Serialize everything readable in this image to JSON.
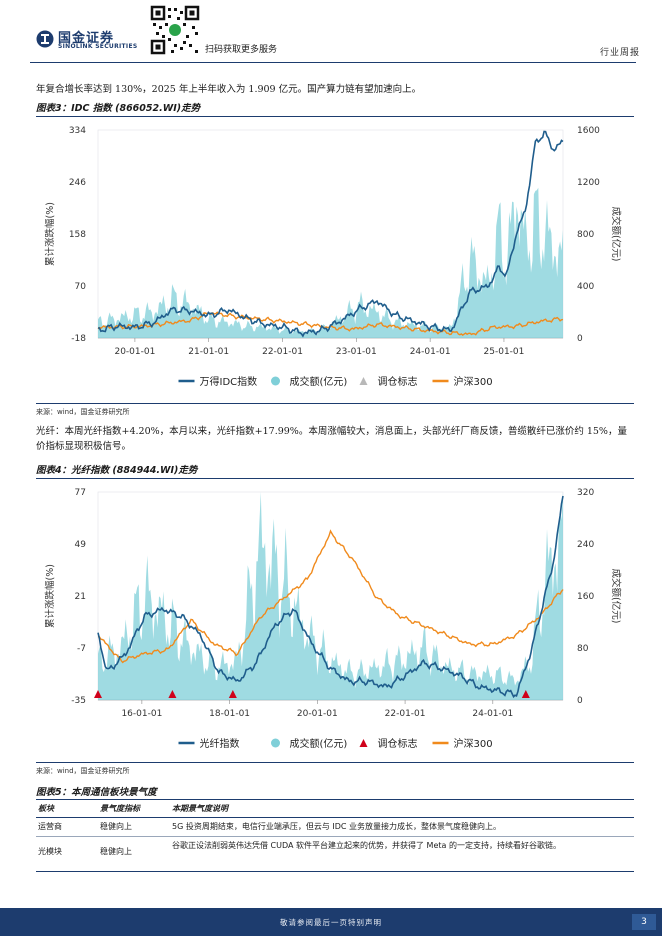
{
  "header": {
    "logo_cn": "国金证券",
    "logo_en": "SINOLINK SECURITIES",
    "qr_caption": "扫码获取更多服务",
    "report_type": "行业周报"
  },
  "intro_text": "年复合增长率达到 130%，2025 年上半年收入为 1.909 亿元。国产算力链有望加速向上。",
  "figure3": {
    "title": "图表3：IDC 指数 (866052.WI)走势",
    "source": "来源：wind，国金证券研究所",
    "chart_data": {
      "type": "line",
      "title": "IDC 指数 (866052.WI)走势",
      "ylabel": "累计涨跌幅(%)",
      "y2label": "成交额(亿元)",
      "ylim": [
        -18,
        334
      ],
      "y2lim": [
        0,
        1600
      ],
      "yticks": [
        "334",
        "246",
        "158",
        "70",
        "-18"
      ],
      "y2ticks": [
        "1600",
        "1200",
        "800",
        "400",
        "0"
      ],
      "xticks": [
        "20-01-01",
        "21-01-01",
        "22-01-01",
        "23-01-01",
        "24-01-01",
        "25-01-01"
      ],
      "legend": [
        "万得IDC指数",
        "成交额(亿元)",
        "调仓标志",
        "沪深300"
      ],
      "colors": {
        "index": "#1f5d8c",
        "volume": "#7fcfd8",
        "marker": "#b8b8b8",
        "hs300": "#f08a1c"
      },
      "series": [
        {
          "name": "万得IDC指数",
          "t": [
            0,
            0.04,
            0.08,
            0.12,
            0.16,
            0.2,
            0.24,
            0.28,
            0.32,
            0.36,
            0.4,
            0.44,
            0.48,
            0.52,
            0.56,
            0.6,
            0.64,
            0.68,
            0.72,
            0.76,
            0.8,
            0.84,
            0.86,
            0.88,
            0.9,
            0.92,
            0.94,
            0.96,
            0.98,
            1.0
          ],
          "values": [
            -5,
            2,
            0,
            8,
            30,
            28,
            20,
            30,
            15,
            5,
            0,
            -10,
            -5,
            10,
            30,
            45,
            20,
            10,
            0,
            -5,
            60,
            70,
            100,
            90,
            160,
            200,
            310,
            330,
            300,
            315
          ]
        },
        {
          "name": "成交额(亿元)",
          "t": [
            0,
            0.04,
            0.08,
            0.12,
            0.16,
            0.2,
            0.24,
            0.28,
            0.32,
            0.36,
            0.4,
            0.44,
            0.48,
            0.52,
            0.56,
            0.6,
            0.64,
            0.68,
            0.72,
            0.76,
            0.8,
            0.84,
            0.86,
            0.88,
            0.9,
            0.92,
            0.94,
            0.96,
            0.98,
            1.0
          ],
          "values": [
            120,
            150,
            180,
            200,
            300,
            250,
            140,
            120,
            90,
            80,
            60,
            50,
            60,
            150,
            250,
            200,
            120,
            100,
            80,
            80,
            600,
            400,
            800,
            600,
            1100,
            700,
            900,
            800,
            700,
            600
          ]
        },
        {
          "name": "沪深300",
          "t": [
            0,
            0.1,
            0.2,
            0.24,
            0.3,
            0.4,
            0.5,
            0.55,
            0.6,
            0.7,
            0.8,
            0.85,
            0.9,
            0.95,
            1.0
          ],
          "values": [
            0,
            2,
            12,
            25,
            18,
            10,
            0,
            -3,
            5,
            -5,
            -12,
            0,
            2,
            10,
            15
          ]
        }
      ]
    }
  },
  "para2": "光纤：本周光纤指数+4.20%，本月以来，光纤指数+17.99%。本周涨幅较大，消息面上，头部光纤厂商反馈，普缆散纤已涨价约 15%，量价指标显现积极信号。",
  "figure4": {
    "title": "图表4：光纤指数 (884944.WI)走势",
    "source": "来源：wind，国金证券研究所",
    "chart_data": {
      "type": "line",
      "title": "光纤指数 (884944.WI)走势",
      "ylabel": "累计涨跌幅(%)",
      "y2label": "成交额(亿元)",
      "ylim": [
        -35,
        77
      ],
      "y2lim": [
        0,
        320
      ],
      "yticks": [
        "77",
        "49",
        "21",
        "-7",
        "-35"
      ],
      "y2ticks": [
        "320",
        "240",
        "160",
        "80",
        "0"
      ],
      "xticks": [
        "16-01-01",
        "18-01-01",
        "20-01-01",
        "22-01-01",
        "24-01-01"
      ],
      "legend": [
        "光纤指数",
        "成交额(亿元)",
        "调仓标志",
        "沪深300"
      ],
      "colors": {
        "index": "#1f5d8c",
        "volume": "#7fcfd8",
        "marker": "#d0021b",
        "hs300": "#f08a1c"
      },
      "series": [
        {
          "name": "光纤指数",
          "t": [
            0,
            0.02,
            0.06,
            0.1,
            0.14,
            0.18,
            0.22,
            0.26,
            0.3,
            0.34,
            0.38,
            0.42,
            0.46,
            0.5,
            0.54,
            0.58,
            0.62,
            0.66,
            0.7,
            0.74,
            0.78,
            0.82,
            0.86,
            0.9,
            0.93,
            0.96,
            0.98,
            1.0
          ],
          "values": [
            0,
            -20,
            -10,
            10,
            14,
            10,
            0,
            -20,
            -25,
            -15,
            5,
            14,
            -5,
            -18,
            -25,
            -25,
            -28,
            -22,
            -15,
            -18,
            -22,
            -28,
            -30,
            -32,
            -10,
            20,
            40,
            75
          ]
        },
        {
          "name": "成交额(亿元)",
          "t": [
            0,
            0.05,
            0.1,
            0.15,
            0.2,
            0.25,
            0.3,
            0.35,
            0.4,
            0.45,
            0.5,
            0.55,
            0.6,
            0.65,
            0.7,
            0.75,
            0.8,
            0.85,
            0.9,
            0.93,
            0.96,
            1.0
          ],
          "values": [
            60,
            80,
            160,
            120,
            80,
            50,
            60,
            240,
            180,
            100,
            60,
            40,
            50,
            60,
            80,
            50,
            40,
            40,
            30,
            60,
            180,
            260
          ]
        },
        {
          "name": "沪深300",
          "t": [
            0,
            0.05,
            0.1,
            0.15,
            0.2,
            0.25,
            0.3,
            0.35,
            0.4,
            0.45,
            0.5,
            0.55,
            0.6,
            0.65,
            0.7,
            0.75,
            0.8,
            0.85,
            0.9,
            0.95,
            1.0
          ],
          "values": [
            0,
            -14,
            -10,
            -8,
            8,
            -5,
            -10,
            10,
            20,
            30,
            55,
            40,
            20,
            10,
            5,
            0,
            -5,
            -5,
            0,
            10,
            25
          ]
        }
      ],
      "rebalance_marker_t": [
        0,
        0.16,
        0.29,
        0.92
      ]
    }
  },
  "figure5": {
    "title": "图表5：本周通信板块景气度",
    "columns": [
      "板块",
      "景气度指标",
      "本期景气度说明"
    ],
    "rows": [
      [
        "运营商",
        "稳健向上",
        "5G 投资周期结束，电信行业端承压，但云与 IDC 业务放量接力成长，整体景气度稳健向上。"
      ],
      [
        "光模块",
        "稳健向上",
        "谷歌正设法削弱英伟达凭借 CUDA 软件平台建立起来的优势，并获得了 Meta 的一定支持，持续看好谷歌链。"
      ]
    ]
  },
  "footer": {
    "disclaimer": "敬请参阅最后一页特别声明",
    "page": "3"
  }
}
